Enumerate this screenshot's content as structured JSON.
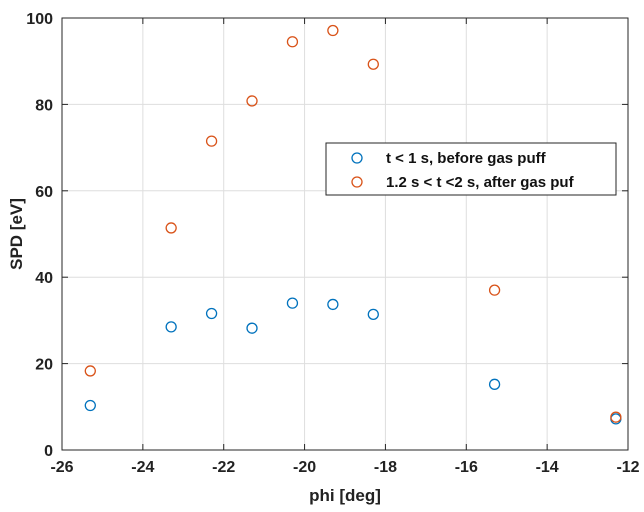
{
  "chart_data": {
    "type": "scatter",
    "title": "",
    "xlabel": "phi [deg]",
    "ylabel": "SPD [eV]",
    "xlim": [
      -26,
      -12
    ],
    "ylim": [
      0,
      100
    ],
    "xticks": [
      "-26",
      "-24",
      "-22",
      "-20",
      "-18",
      "-16",
      "-14",
      "-12"
    ],
    "yticks": [
      "0",
      "20",
      "40",
      "60",
      "80",
      "100"
    ],
    "grid": true,
    "legend_position": "right, upper-middle",
    "series": [
      {
        "name": "t < 1 s, before gas puff",
        "color": "#0072BD",
        "marker": "open-circle",
        "x": [
          -25.3,
          -23.3,
          -22.3,
          -21.3,
          -20.3,
          -19.3,
          -18.3,
          -15.3,
          -12.3
        ],
        "y": [
          10.3,
          28.5,
          31.6,
          28.2,
          34.0,
          33.7,
          31.4,
          15.2,
          7.2
        ]
      },
      {
        "name": "1.2 s < t <2 s, after gas puf",
        "color": "#D95319",
        "marker": "open-circle",
        "x": [
          -25.3,
          -23.3,
          -22.3,
          -21.3,
          -20.3,
          -19.3,
          -18.3,
          -15.3,
          -12.3
        ],
        "y": [
          18.3,
          51.4,
          71.5,
          80.8,
          94.5,
          97.1,
          89.3,
          37.0,
          7.6
        ]
      }
    ]
  }
}
